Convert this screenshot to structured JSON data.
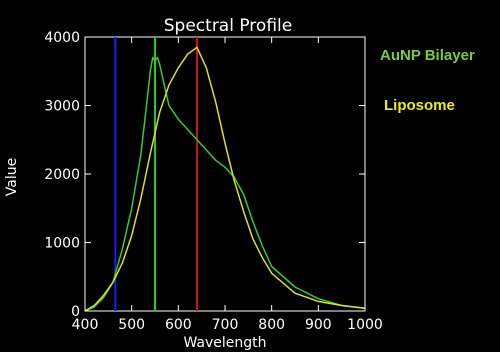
{
  "chart_data": {
    "type": "line",
    "title": "Spectral Profile",
    "xlabel": "Wavelength",
    "ylabel": "Value",
    "xlim": [
      400,
      1000
    ],
    "ylim": [
      0,
      4000
    ],
    "xticks": [
      400,
      500,
      600,
      700,
      800,
      900,
      1000
    ],
    "yticks": [
      0,
      1000,
      2000,
      3000,
      4000
    ],
    "vlines": [
      {
        "x": 465,
        "color": "#1a1aff"
      },
      {
        "x": 550,
        "color": "#22cc22"
      },
      {
        "x": 640,
        "color": "#cc1111"
      }
    ],
    "series": [
      {
        "name": "AuNP Bilayer",
        "color": "#33cc33",
        "x": [
          400,
          420,
          440,
          460,
          480,
          500,
          520,
          530,
          540,
          545,
          550,
          555,
          560,
          570,
          580,
          600,
          620,
          640,
          660,
          680,
          700,
          720,
          740,
          760,
          780,
          800,
          850,
          900,
          950,
          1000
        ],
        "y": [
          0,
          60,
          200,
          420,
          900,
          1500,
          2300,
          2900,
          3500,
          3700,
          3650,
          3700,
          3600,
          3300,
          3000,
          2800,
          2650,
          2500,
          2350,
          2200,
          2100,
          1950,
          1700,
          1300,
          950,
          650,
          350,
          180,
          80,
          40
        ]
      },
      {
        "name": "Liposome",
        "color": "#e0e020",
        "x": [
          400,
          420,
          440,
          460,
          480,
          500,
          520,
          540,
          560,
          580,
          600,
          620,
          640,
          660,
          680,
          700,
          720,
          740,
          760,
          780,
          800,
          850,
          900,
          950,
          1000
        ],
        "y": [
          0,
          80,
          230,
          420,
          700,
          1100,
          1650,
          2300,
          2900,
          3300,
          3550,
          3750,
          3850,
          3550,
          3050,
          2450,
          1900,
          1450,
          1050,
          780,
          550,
          260,
          140,
          80,
          40
        ]
      }
    ],
    "legend": [
      "AuNP Bilayer",
      "Liposome"
    ],
    "grid": false
  }
}
